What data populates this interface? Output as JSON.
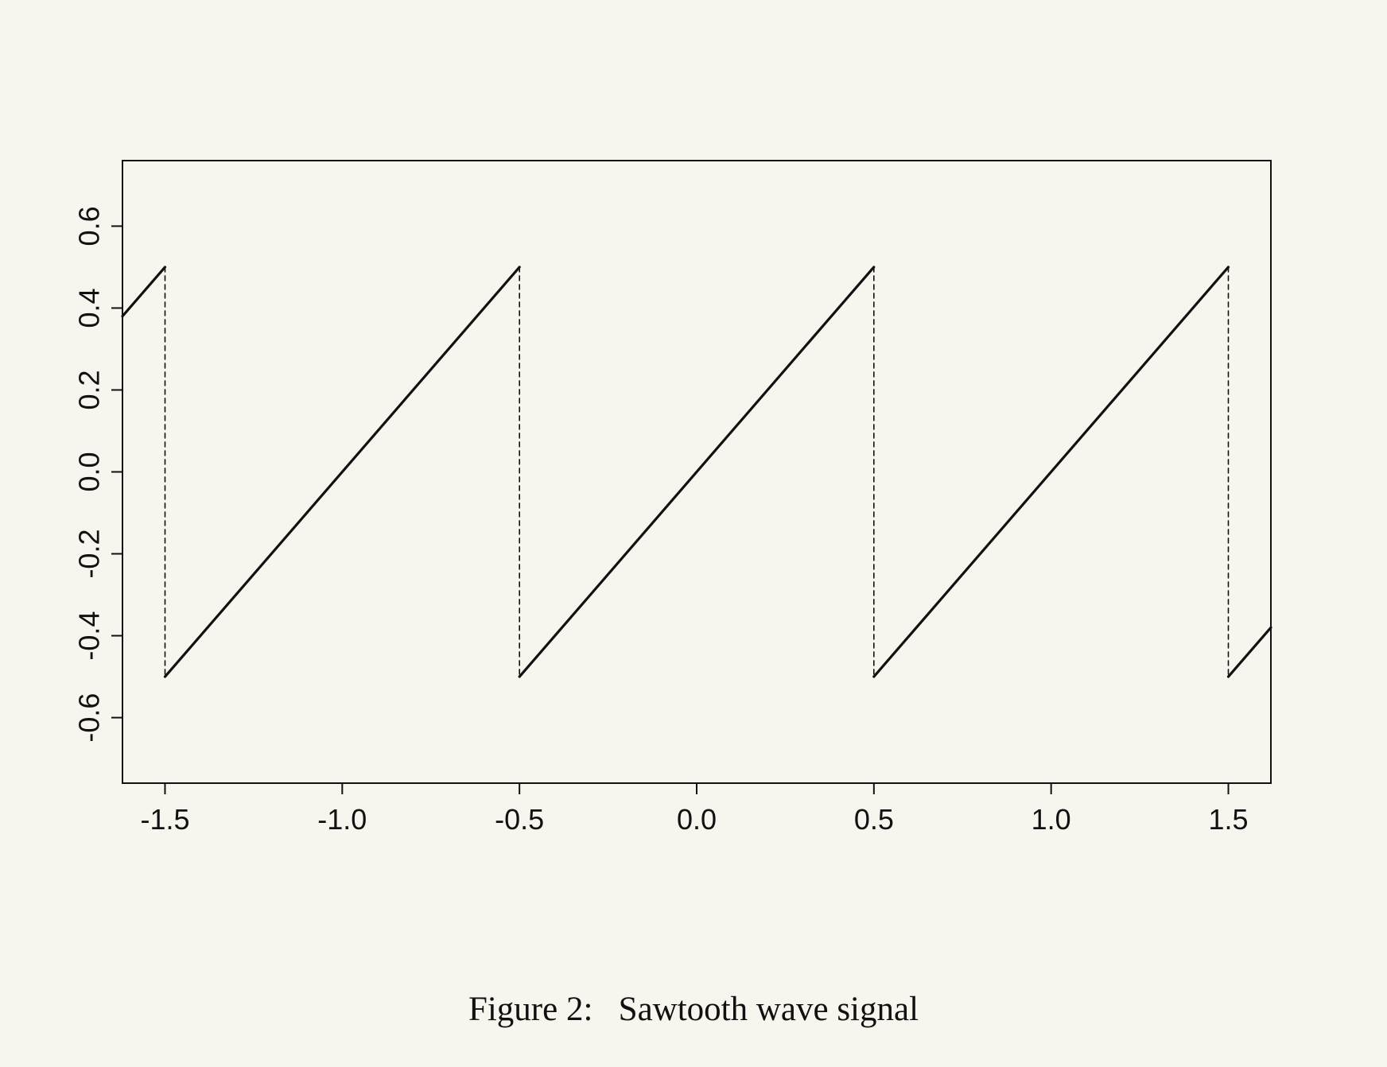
{
  "chart_data": {
    "type": "line",
    "title": "",
    "xlabel": "",
    "ylabel": "",
    "xlim": [
      -1.62,
      1.62
    ],
    "ylim": [
      -0.76,
      0.76
    ],
    "x_ticks": [
      -1.5,
      -1.0,
      -0.5,
      0.0,
      0.5,
      1.0,
      1.5
    ],
    "x_tick_labels": [
      "-1.5",
      "-1.0",
      "-0.5",
      "0.0",
      "0.5",
      "1.0",
      "1.5"
    ],
    "y_ticks": [
      -0.6,
      -0.4,
      -0.2,
      0.0,
      0.2,
      0.4,
      0.6
    ],
    "y_tick_labels": [
      "-0.6",
      "-0.4",
      "-0.2",
      "0.0",
      "0.2",
      "0.4",
      "0.6"
    ],
    "grid": false,
    "legend": "none",
    "line_color": "#111111",
    "series": [
      {
        "style": "solid",
        "segments": [
          [
            [
              -1.62,
              0.38
            ],
            [
              -1.5,
              0.5
            ]
          ],
          [
            [
              -1.5,
              -0.5
            ],
            [
              -0.5,
              0.5
            ]
          ],
          [
            [
              -0.5,
              -0.5
            ],
            [
              0.5,
              0.5
            ]
          ],
          [
            [
              0.5,
              -0.5
            ],
            [
              1.5,
              0.5
            ]
          ],
          [
            [
              1.5,
              -0.5
            ],
            [
              1.62,
              -0.38
            ]
          ]
        ]
      },
      {
        "style": "dashed",
        "segments": [
          [
            [
              -1.5,
              0.5
            ],
            [
              -1.5,
              -0.5
            ]
          ],
          [
            [
              -0.5,
              0.5
            ],
            [
              -0.5,
              -0.5
            ]
          ],
          [
            [
              0.5,
              0.5
            ],
            [
              0.5,
              -0.5
            ]
          ],
          [
            [
              1.5,
              0.5
            ],
            [
              1.5,
              -0.5
            ]
          ]
        ]
      }
    ]
  },
  "caption": {
    "label": "Figure 2:",
    "text": "Sawtooth wave signal"
  }
}
